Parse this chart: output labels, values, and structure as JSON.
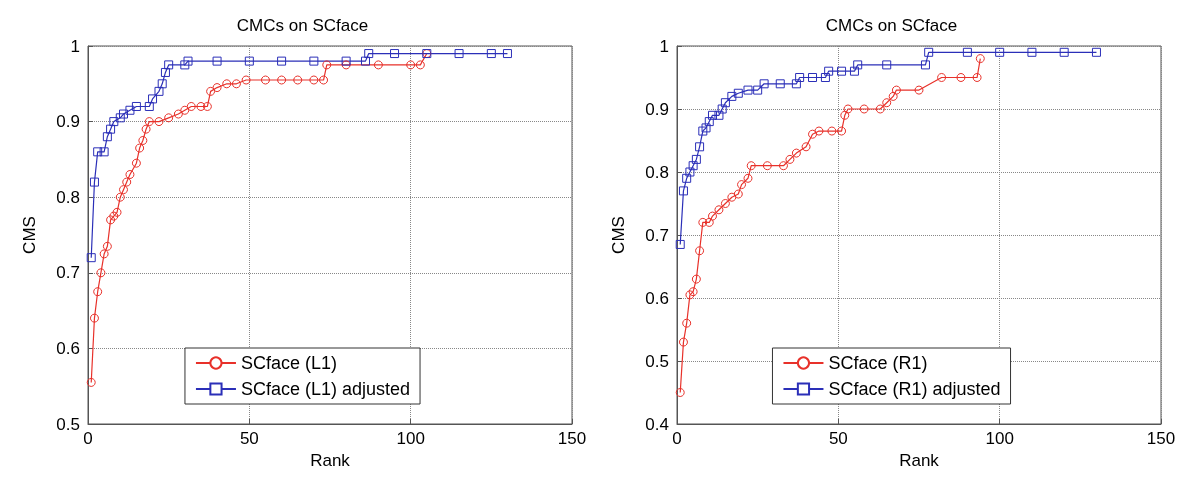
{
  "chart_data": [
    {
      "type": "line",
      "title": "CMCs on SCface",
      "xlabel": "Rank",
      "ylabel": "CMS",
      "xlim": [
        0,
        150
      ],
      "xticks": [
        0,
        50,
        100,
        150
      ],
      "ylim": [
        0.5,
        1
      ],
      "yticks": [
        0.5,
        0.6,
        0.7,
        0.8,
        0.9,
        1
      ],
      "grid": true,
      "legend": "bottom",
      "line_style": "solid",
      "series": [
        {
          "name": "SCface (L1)",
          "color": "#e8312a",
          "marker": "circle",
          "x": [
            1,
            2,
            3,
            4,
            5,
            6,
            7,
            8,
            9,
            10,
            11,
            12,
            13,
            15,
            16,
            17,
            18,
            19,
            22,
            25,
            28,
            30,
            32,
            35,
            37,
            38,
            40,
            43,
            46,
            49,
            55,
            60,
            65,
            70,
            73,
            74,
            80,
            90,
            100,
            103,
            105
          ],
          "values": [
            0.555,
            0.64,
            0.675,
            0.7,
            0.725,
            0.735,
            0.77,
            0.775,
            0.78,
            0.8,
            0.81,
            0.82,
            0.83,
            0.845,
            0.865,
            0.875,
            0.89,
            0.9,
            0.9,
            0.905,
            0.91,
            0.915,
            0.92,
            0.92,
            0.92,
            0.94,
            0.945,
            0.95,
            0.95,
            0.955,
            0.955,
            0.955,
            0.955,
            0.955,
            0.955,
            0.975,
            0.975,
            0.975,
            0.975,
            0.975,
            0.99
          ]
        },
        {
          "name": "SCface (L1) adjusted",
          "color": "#2b2fb8",
          "marker": "square",
          "x": [
            1,
            2,
            3,
            5,
            6,
            7,
            8,
            10,
            11,
            13,
            15,
            19,
            20,
            22,
            23,
            24,
            25,
            30,
            31,
            40,
            50,
            60,
            70,
            80,
            86,
            87,
            95,
            105,
            115,
            125,
            130
          ],
          "values": [
            0.72,
            0.82,
            0.86,
            0.86,
            0.88,
            0.89,
            0.9,
            0.905,
            0.91,
            0.915,
            0.92,
            0.92,
            0.93,
            0.94,
            0.95,
            0.965,
            0.975,
            0.975,
            0.98,
            0.98,
            0.98,
            0.98,
            0.98,
            0.98,
            0.98,
            0.99,
            0.99,
            0.99,
            0.99,
            0.99,
            0.99
          ]
        }
      ]
    },
    {
      "type": "line",
      "title": "CMCs on SCface",
      "xlabel": "Rank",
      "ylabel": "CMS",
      "xlim": [
        0,
        150
      ],
      "xticks": [
        0,
        50,
        100,
        150
      ],
      "ylim": [
        0.4,
        1
      ],
      "yticks": [
        0.4,
        0.5,
        0.6,
        0.7,
        0.8,
        0.9,
        1
      ],
      "grid": true,
      "legend": "bottom",
      "line_style": "solid",
      "series": [
        {
          "name": "SCface (R1)",
          "color": "#e8312a",
          "marker": "circle",
          "x": [
            1,
            2,
            3,
            4,
            5,
            6,
            7,
            8,
            10,
            11,
            13,
            15,
            17,
            19,
            20,
            22,
            23,
            28,
            33,
            35,
            37,
            40,
            42,
            44,
            48,
            51,
            52,
            53,
            58,
            63,
            65,
            67,
            68,
            75,
            82,
            88,
            93,
            94
          ],
          "values": [
            0.45,
            0.53,
            0.56,
            0.605,
            0.61,
            0.63,
            0.675,
            0.72,
            0.72,
            0.73,
            0.74,
            0.75,
            0.76,
            0.765,
            0.78,
            0.79,
            0.81,
            0.81,
            0.81,
            0.82,
            0.83,
            0.84,
            0.86,
            0.865,
            0.865,
            0.865,
            0.89,
            0.9,
            0.9,
            0.9,
            0.91,
            0.92,
            0.93,
            0.93,
            0.95,
            0.95,
            0.95,
            0.98
          ]
        },
        {
          "name": "SCface (R1) adjusted",
          "color": "#2b2fb8",
          "marker": "square",
          "x": [
            1,
            2,
            3,
            4,
            5,
            6,
            7,
            8,
            9,
            10,
            11,
            13,
            14,
            15,
            17,
            19,
            22,
            25,
            27,
            32,
            37,
            38,
            42,
            46,
            47,
            51,
            55,
            56,
            65,
            77,
            78,
            90,
            100,
            110,
            120,
            130
          ],
          "values": [
            0.685,
            0.77,
            0.79,
            0.8,
            0.81,
            0.82,
            0.84,
            0.865,
            0.87,
            0.88,
            0.89,
            0.89,
            0.9,
            0.91,
            0.92,
            0.925,
            0.93,
            0.93,
            0.94,
            0.94,
            0.94,
            0.95,
            0.95,
            0.95,
            0.96,
            0.96,
            0.96,
            0.97,
            0.97,
            0.97,
            0.99,
            0.99,
            0.99,
            0.99,
            0.99,
            0.99
          ]
        }
      ]
    }
  ]
}
